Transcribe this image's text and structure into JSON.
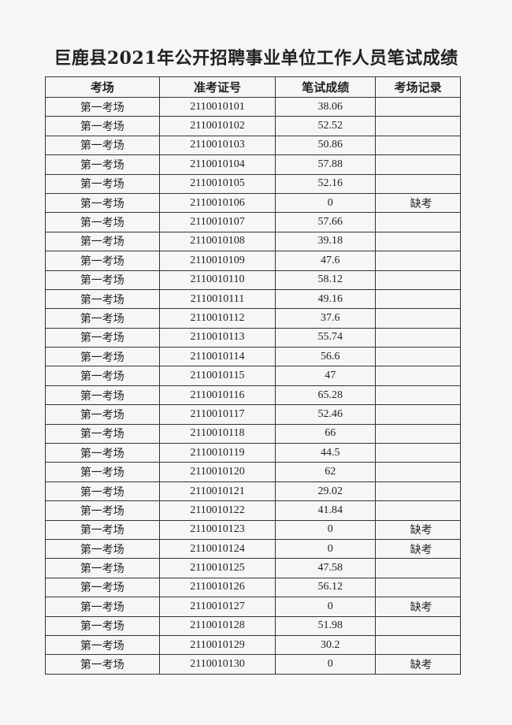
{
  "title": "巨鹿县2021年公开招聘事业单位工作人员笔试成绩",
  "table": {
    "header": [
      "考场",
      "准考证号",
      "笔试成绩",
      "考场记录"
    ],
    "rows": [
      {
        "room": "第一考场",
        "id": "2110010101",
        "score": "38.06"
      },
      {
        "room": "第一考场",
        "id": "2110010102",
        "score": "52.52"
      },
      {
        "room": "第一考场",
        "id": "2110010103",
        "score": "50.86"
      },
      {
        "room": "第一考场",
        "id": "2110010104",
        "score": "57.88"
      },
      {
        "room": "第一考场",
        "id": "2110010105",
        "score": "52.16"
      },
      {
        "room": "第一考场",
        "id": "2110010106",
        "score": "0",
        "note": "缺考"
      },
      {
        "room": "第一考场",
        "id": "2110010107",
        "score": "57.66"
      },
      {
        "room": "第一考场",
        "id": "2110010108",
        "score": "39.18"
      },
      {
        "room": "第一考场",
        "id": "2110010109",
        "score": "47.6"
      },
      {
        "room": "第一考场",
        "id": "2110010110",
        "score": "58.12"
      },
      {
        "room": "第一考场",
        "id": "2110010111",
        "score": "49.16"
      },
      {
        "room": "第一考场",
        "id": "2110010112",
        "score": "37.6"
      },
      {
        "room": "第一考场",
        "id": "2110010113",
        "score": "55.74"
      },
      {
        "room": "第一考场",
        "id": "2110010114",
        "score": "56.6"
      },
      {
        "room": "第一考场",
        "id": "2110010115",
        "score": "47"
      },
      {
        "room": "第一考场",
        "id": "2110010116",
        "score": "65.28"
      },
      {
        "room": "第一考场",
        "id": "2110010117",
        "score": "52.46"
      },
      {
        "room": "第一考场",
        "id": "2110010118",
        "score": "66"
      },
      {
        "room": "第一考场",
        "id": "2110010119",
        "score": "44.5"
      },
      {
        "room": "第一考场",
        "id": "2110010120",
        "score": "62"
      },
      {
        "room": "第一考场",
        "id": "2110010121",
        "score": "29.02"
      },
      {
        "room": "第一考场",
        "id": "2110010122",
        "score": "41.84"
      },
      {
        "room": "第一考场",
        "id": "2110010123",
        "score": "0",
        "note": "缺考"
      },
      {
        "room": "第一考场",
        "id": "2110010124",
        "score": "0",
        "note": "缺考"
      },
      {
        "room": "第一考场",
        "id": "2110010125",
        "score": "47.58"
      },
      {
        "room": "第一考场",
        "id": "2110010126",
        "score": "56.12"
      },
      {
        "room": "第一考场",
        "id": "2110010127",
        "score": "0",
        "note": "缺考"
      },
      {
        "room": "第一考场",
        "id": "2110010128",
        "score": "51.98"
      },
      {
        "room": "第一考场",
        "id": "2110010129",
        "score": "30.2"
      },
      {
        "room": "第一考场",
        "id": "2110010130",
        "score": "0",
        "note": "缺考"
      }
    ]
  }
}
